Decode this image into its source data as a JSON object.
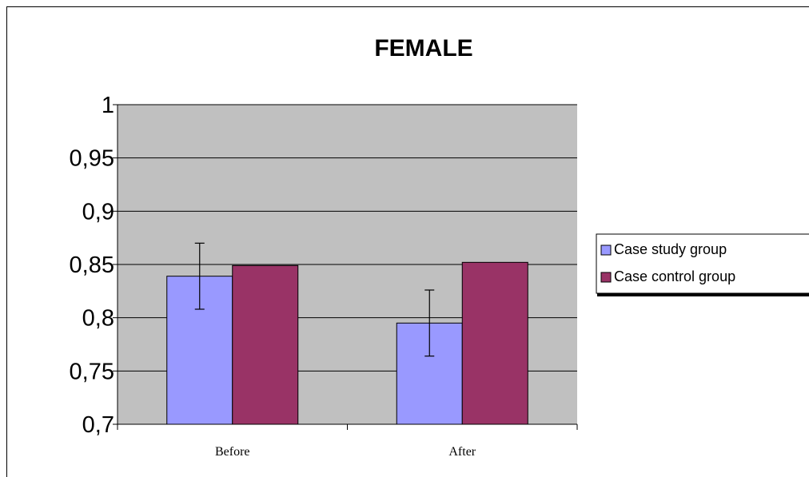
{
  "chart_data": {
    "type": "bar",
    "title": "FEMALE",
    "xlabel": "",
    "ylabel": "",
    "categories": [
      "Before",
      "After"
    ],
    "series": [
      {
        "name": "Case study group",
        "values": [
          0.839,
          0.795
        ],
        "error": [
          0.031,
          0.031
        ],
        "color": "#9999ff"
      },
      {
        "name": "Case control group",
        "values": [
          0.849,
          0.852
        ],
        "color": "#993366"
      }
    ],
    "ylim": [
      0.7,
      1
    ],
    "yticks": [
      "0,7",
      "0,75",
      "0,8",
      "0,85",
      "0,9",
      "0,95",
      "1"
    ],
    "grid": true,
    "plot_background": "#c0c0c0",
    "legend_position": "right"
  }
}
